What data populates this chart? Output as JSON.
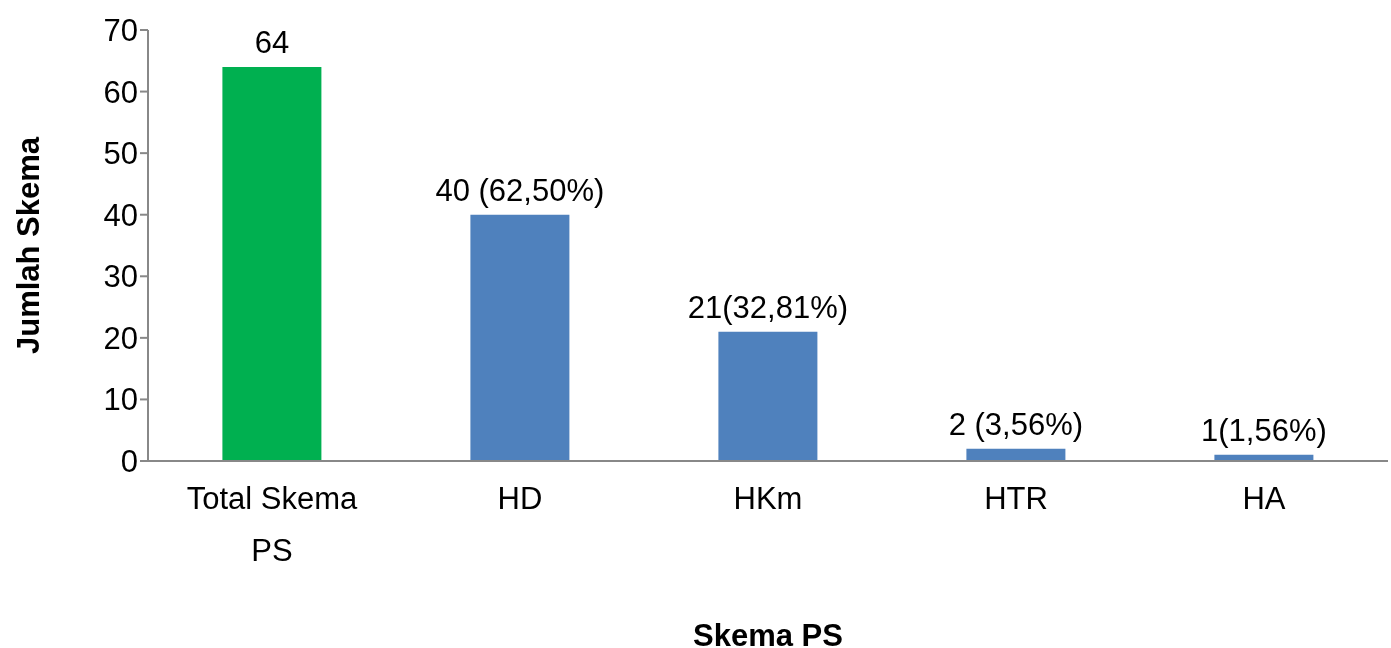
{
  "chart_data": {
    "type": "bar",
    "xlabel": "Skema PS",
    "ylabel": "Jumlah Skema",
    "categories": [
      "Total Skema PS",
      "HD",
      "HKm",
      "HTR",
      "HA"
    ],
    "values": [
      64,
      40,
      21,
      2,
      1
    ],
    "colors": [
      "#00b050",
      "#4f81bd",
      "#4f81bd",
      "#4f81bd",
      "#4f81bd"
    ],
    "value_labels": [
      "64",
      "40 (62,50%)",
      "21(32,81%)",
      "2 (3,56%)",
      "1(1,56%)"
    ],
    "ylim": [
      0,
      70
    ],
    "yticks": [
      0,
      10,
      20,
      30,
      40,
      50,
      60,
      70
    ],
    "grid": false,
    "legend": false
  }
}
